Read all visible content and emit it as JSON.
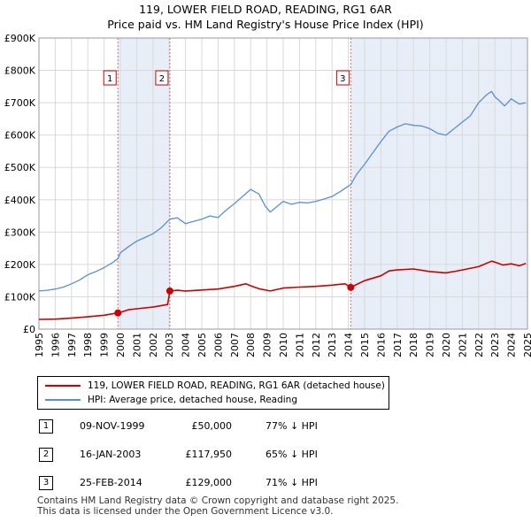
{
  "title_line1": "119, LOWER FIELD ROAD, READING, RG1 6AR",
  "title_line2": "Price paid vs. HM Land Registry's House Price Index (HPI)",
  "legend": {
    "property": "119, LOWER FIELD ROAD, READING, RG1 6AR (detached house)",
    "hpi": "HPI: Average price, detached house, Reading"
  },
  "colors": {
    "property": "#cc0000",
    "hpi": "#5b8fd0",
    "shade": "#e8eef8",
    "marker_line": "#d46a6a",
    "grid": "#d9d9d9"
  },
  "sales": [
    {
      "num": "1",
      "date": "09-NOV-1999",
      "price": "£50,000",
      "hpi": "77% ↓ HPI"
    },
    {
      "num": "2",
      "date": "16-JAN-2003",
      "price": "£117,950",
      "hpi": "65% ↓ HPI"
    },
    {
      "num": "3",
      "date": "25-FEB-2014",
      "price": "£129,000",
      "hpi": "71% ↓ HPI"
    }
  ],
  "footer": {
    "line1": "Contains HM Land Registry data © Crown copyright and database right 2025.",
    "line2": "This data is licensed under the Open Government Licence v3.0."
  },
  "chart_data": {
    "type": "line",
    "title": "119, LOWER FIELD ROAD, READING, RG1 6AR — Price paid vs. HM Land Registry's House Price Index (HPI)",
    "xlabel": "",
    "ylabel": "",
    "xlim": [
      1995,
      2025
    ],
    "ylim": [
      0,
      900000
    ],
    "x_ticks": [
      "1995",
      "1996",
      "1997",
      "1998",
      "1999",
      "2000",
      "2001",
      "2002",
      "2003",
      "2004",
      "2005",
      "2006",
      "2007",
      "2008",
      "2009",
      "2010",
      "2011",
      "2012",
      "2013",
      "2014",
      "2015",
      "2016",
      "2017",
      "2018",
      "2019",
      "2020",
      "2021",
      "2022",
      "2023",
      "2024",
      "2025"
    ],
    "y_ticks": [
      {
        "value": 0,
        "label": "£0"
      },
      {
        "value": 100000,
        "label": "£100K"
      },
      {
        "value": 200000,
        "label": "£200K"
      },
      {
        "value": 300000,
        "label": "£300K"
      },
      {
        "value": 400000,
        "label": "£400K"
      },
      {
        "value": 500000,
        "label": "£500K"
      },
      {
        "value": 600000,
        "label": "£600K"
      },
      {
        "value": 700000,
        "label": "£700K"
      },
      {
        "value": 800000,
        "label": "£800K"
      },
      {
        "value": 900000,
        "label": "£900K"
      }
    ],
    "grid": true,
    "series": [
      {
        "name": "119, LOWER FIELD ROAD, READING, RG1 6AR (detached house)",
        "color": "#cc0000",
        "x": [
          1995.0,
          1996.0,
          1997.0,
          1998.0,
          1999.0,
          1999.85,
          2000.0,
          2000.5,
          2001.0,
          2002.0,
          2002.9,
          2003.04,
          2003.5,
          2004.0,
          2005.0,
          2006.0,
          2007.0,
          2007.7,
          2008.0,
          2008.5,
          2009.2,
          2010.0,
          2011.0,
          2012.0,
          2013.0,
          2013.8,
          2014.15,
          2014.5,
          2015.0,
          2016.0,
          2016.5,
          2017.0,
          2018.0,
          2019.0,
          2020.0,
          2020.5,
          2021.0,
          2022.0,
          2022.8,
          2023.0,
          2023.5,
          2024.0,
          2024.5,
          2024.9
        ],
        "values": [
          30000,
          31000,
          34000,
          38000,
          43000,
          50000,
          52000,
          60000,
          63000,
          68000,
          76000,
          117950,
          120000,
          118000,
          121000,
          124000,
          132000,
          140000,
          134000,
          125000,
          118000,
          127000,
          130000,
          132000,
          136000,
          140000,
          129000,
          138000,
          150000,
          165000,
          180000,
          183000,
          186000,
          178000,
          174000,
          178000,
          183000,
          193000,
          210000,
          207000,
          198000,
          202000,
          196000,
          203000
        ]
      },
      {
        "name": "HPI: Average price, detached house, Reading",
        "color": "#5b8fd0",
        "x": [
          1995.0,
          1995.5,
          1996.0,
          1996.5,
          1997.0,
          1997.5,
          1998.0,
          1998.5,
          1999.0,
          1999.5,
          1999.85,
          2000.0,
          2000.5,
          2001.0,
          2001.5,
          2002.0,
          2002.5,
          2003.04,
          2003.5,
          2004.0,
          2004.5,
          2005.0,
          2005.5,
          2006.0,
          2006.5,
          2007.0,
          2007.5,
          2008.0,
          2008.5,
          2008.9,
          2009.2,
          2009.6,
          2010.0,
          2010.5,
          2011.0,
          2011.5,
          2012.0,
          2012.5,
          2013.0,
          2013.5,
          2014.15,
          2014.5,
          2015.0,
          2015.5,
          2016.0,
          2016.5,
          2017.0,
          2017.5,
          2018.0,
          2018.5,
          2019.0,
          2019.5,
          2020.0,
          2020.5,
          2021.0,
          2021.5,
          2022.0,
          2022.5,
          2022.8,
          2023.0,
          2023.3,
          2023.6,
          2024.0,
          2024.5,
          2024.9
        ],
        "values": [
          118000,
          120000,
          124000,
          130000,
          140000,
          152000,
          168000,
          178000,
          190000,
          205000,
          218000,
          236000,
          255000,
          272000,
          283000,
          295000,
          313000,
          340000,
          344000,
          326000,
          333000,
          340000,
          350000,
          345000,
          368000,
          388000,
          410000,
          432000,
          418000,
          380000,
          362000,
          378000,
          395000,
          386000,
          392000,
          390000,
          395000,
          402000,
          410000,
          425000,
          447000,
          478000,
          510000,
          545000,
          580000,
          612000,
          625000,
          635000,
          630000,
          628000,
          620000,
          605000,
          600000,
          620000,
          640000,
          660000,
          700000,
          725000,
          735000,
          718000,
          705000,
          690000,
          712000,
          696000,
          700000
        ]
      }
    ],
    "sale_markers": [
      {
        "label": "1",
        "x": 1999.85,
        "value": 50000
      },
      {
        "label": "2",
        "x": 2003.04,
        "value": 117950
      },
      {
        "label": "3",
        "x": 2014.15,
        "value": 129000
      }
    ],
    "shaded_ranges": [
      [
        1999.85,
        2003.04
      ],
      [
        2014.15,
        2025.0
      ]
    ]
  }
}
